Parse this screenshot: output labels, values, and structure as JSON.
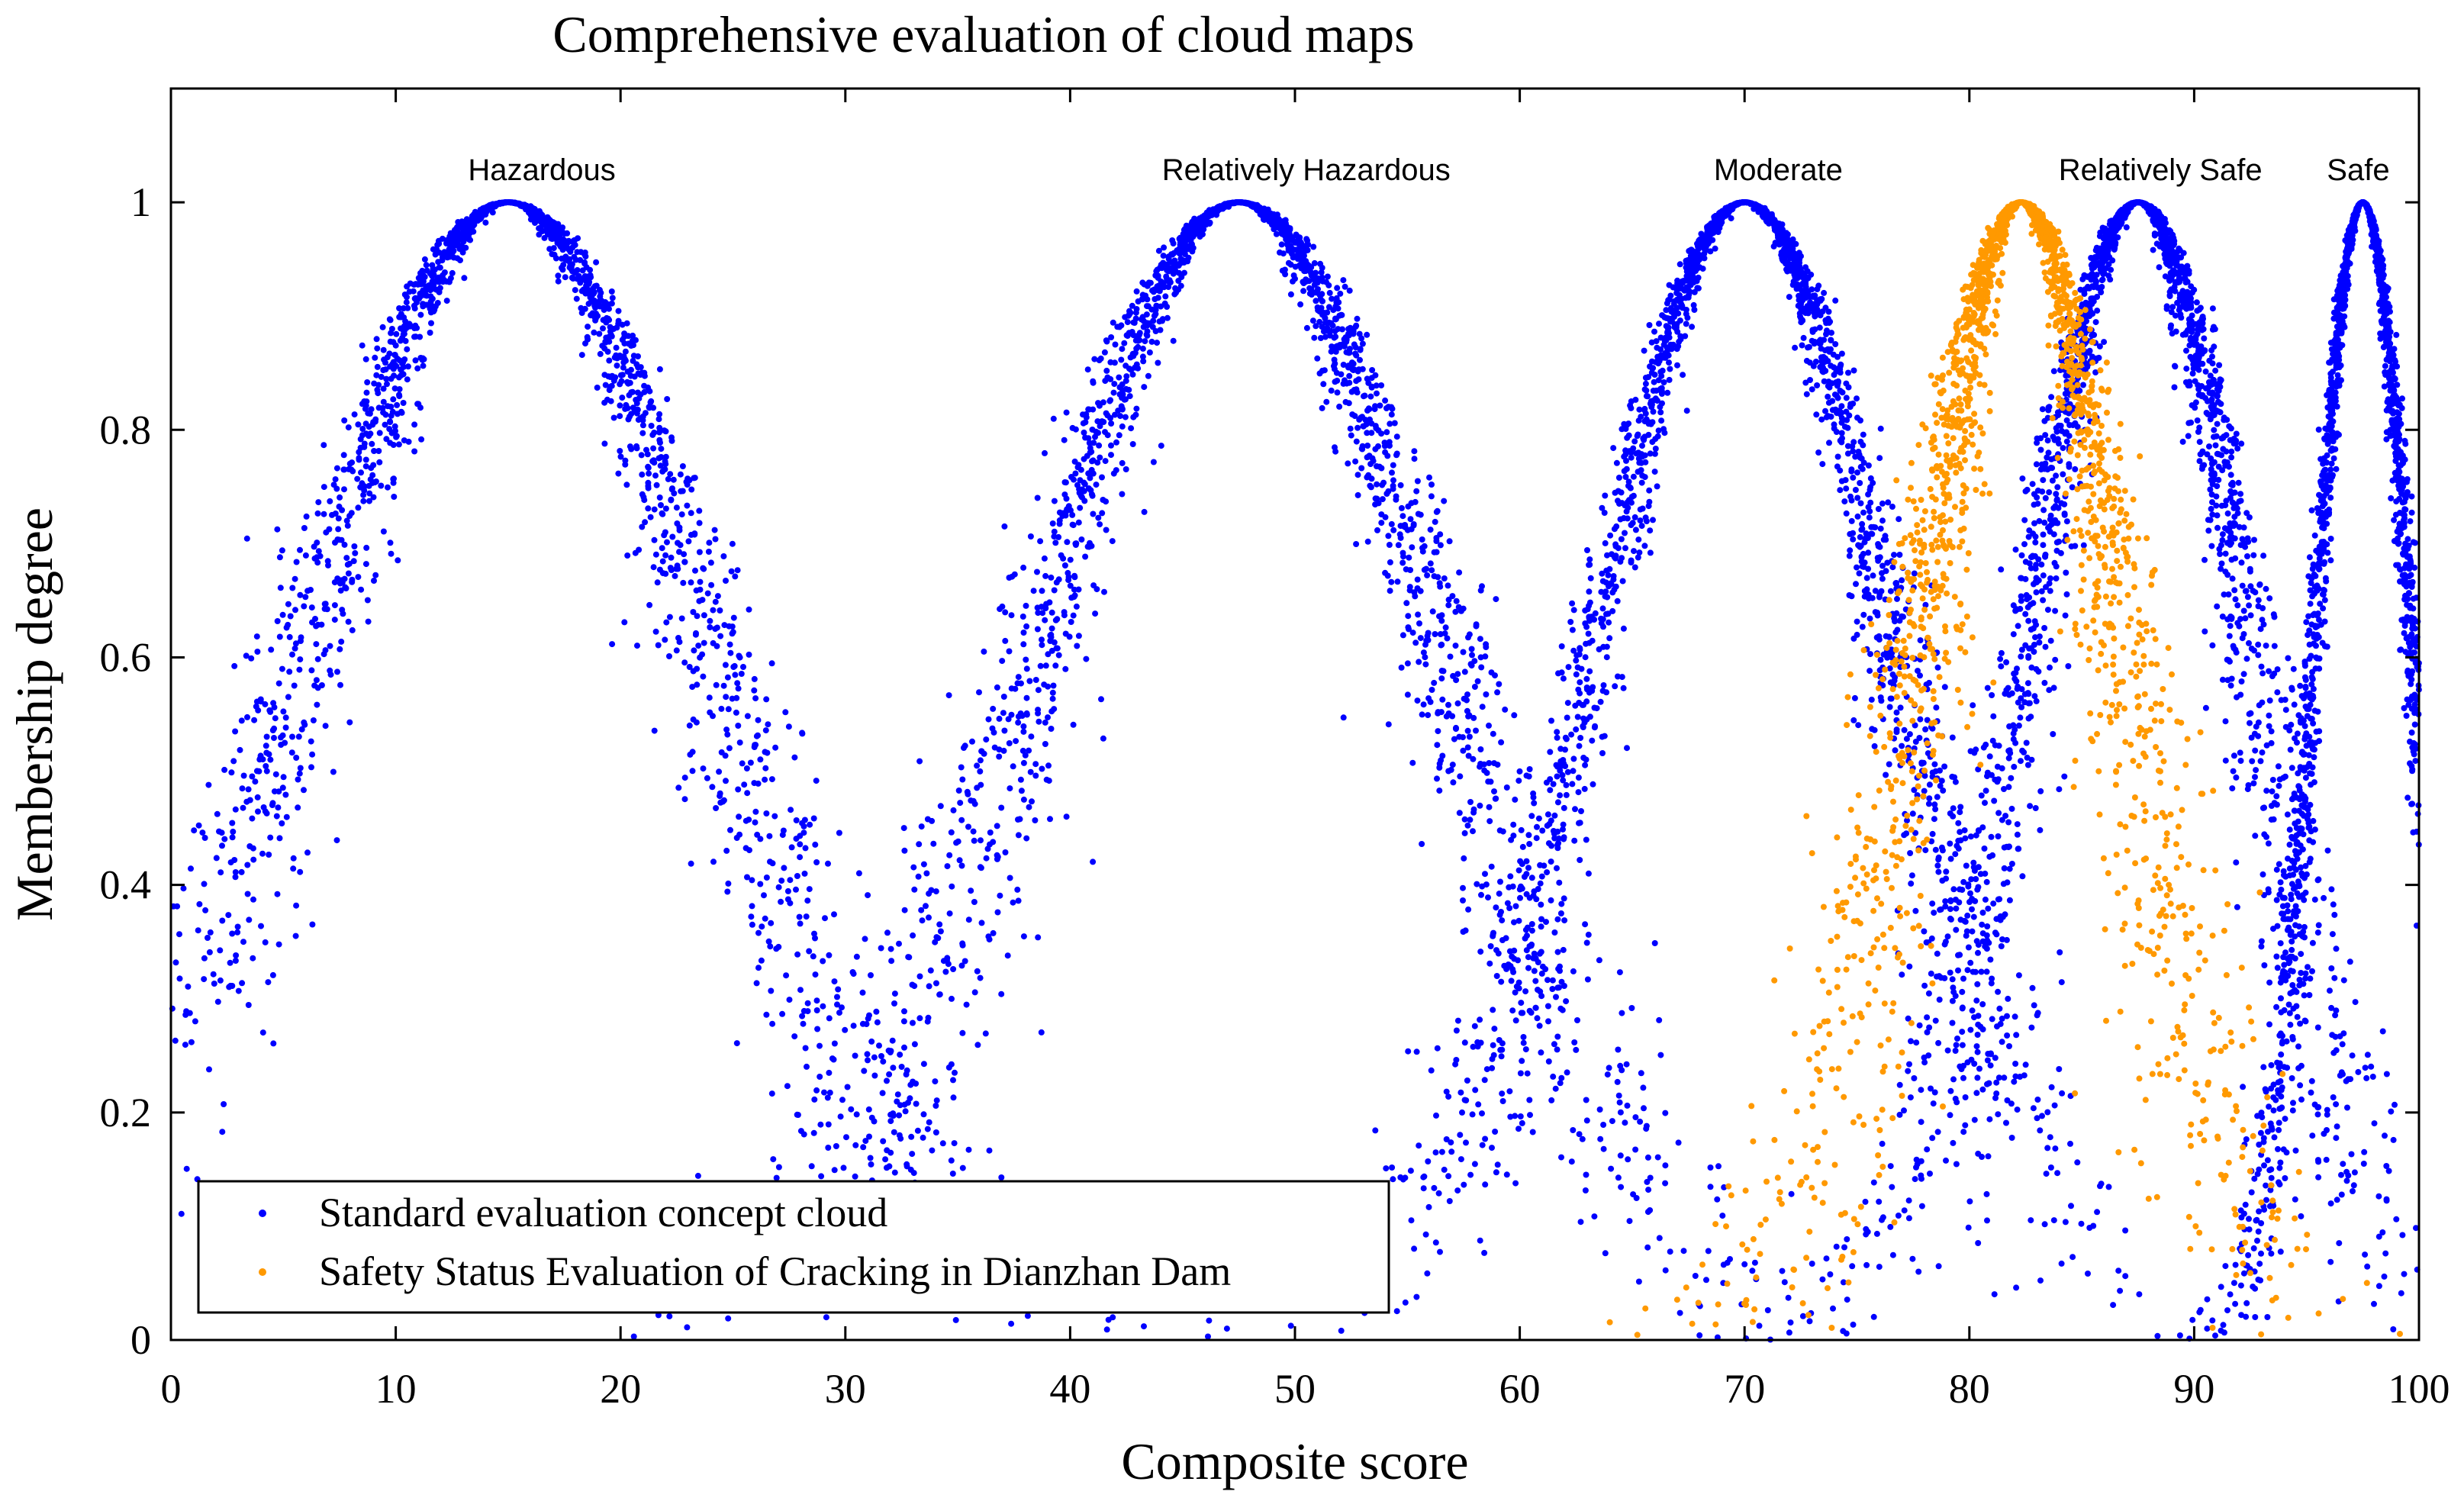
{
  "chart_data": {
    "type": "scatter",
    "title": "Comprehensive evaluation of cloud maps",
    "xlabel": "Composite score",
    "ylabel": "Membership degree",
    "xlim": [
      0,
      100
    ],
    "ylim": [
      0,
      1.1
    ],
    "xticks": [
      0,
      10,
      20,
      30,
      40,
      50,
      60,
      70,
      80,
      90,
      100
    ],
    "xtick_labels": [
      "0",
      "10",
      "20",
      "30",
      "40",
      "50",
      "60",
      "70",
      "80",
      "90",
      "100"
    ],
    "yticks": [
      0,
      0.2,
      0.4,
      0.6,
      0.8,
      1
    ],
    "ytick_labels": [
      "0",
      "0.2",
      "0.4",
      "0.6",
      "0.8",
      "1"
    ],
    "grid": false,
    "legend_position": "bottom-left",
    "series": [
      {
        "name": "Standard evaluation concept cloud",
        "color": "#0000ff",
        "clouds": [
          {
            "label": "Hazardous",
            "Ex": 15.0,
            "En": 9.0,
            "He": 1.2
          },
          {
            "label": "Relatively Hazardous",
            "Ex": 47.5,
            "En": 9.0,
            "He": 1.2
          },
          {
            "label": "Moderate",
            "Ex": 70.0,
            "En": 6.7,
            "He": 0.8
          },
          {
            "label": "Relatively Safe",
            "Ex": 87.5,
            "En": 5.0,
            "He": 0.8
          },
          {
            "label": "Safe",
            "Ex": 97.5,
            "En": 2.2,
            "He": 0.25
          }
        ]
      },
      {
        "name": "Safety Status Evaluation of Cracking in Dianzhan Dam",
        "color": "#ff9900",
        "clouds": [
          {
            "label": "",
            "Ex": 82.3,
            "En": 4.6,
            "He": 1.0
          }
        ]
      }
    ],
    "cloud_labels": [
      {
        "text": "Hazardous",
        "x": 16.5
      },
      {
        "text": "Relatively Hazardous",
        "x": 50.5
      },
      {
        "text": "Moderate",
        "x": 71.5
      },
      {
        "text": "Relatively Safe",
        "x": 88.5
      },
      {
        "text": "Safe",
        "x": 97.3
      }
    ]
  }
}
